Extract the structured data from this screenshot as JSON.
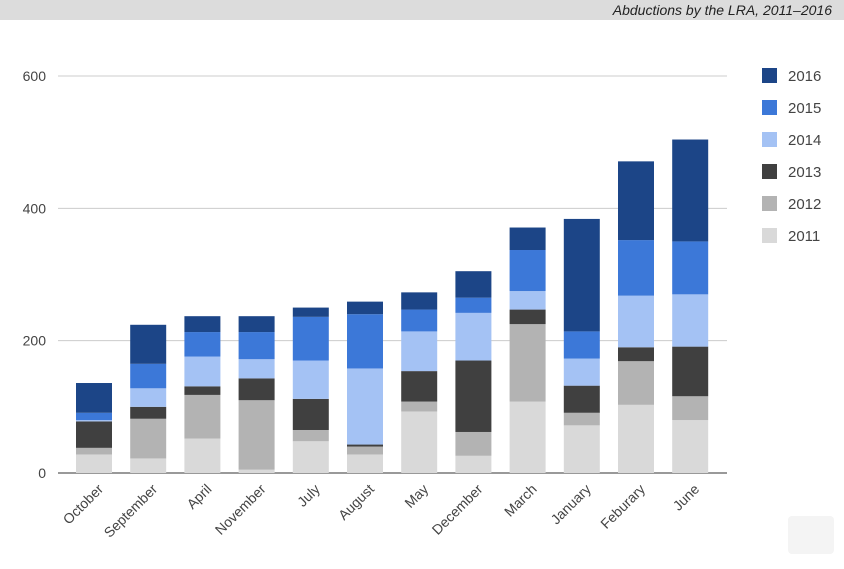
{
  "header": {
    "title": "Abductions by the LRA, 2011–2016"
  },
  "chart_data": {
    "type": "bar",
    "stacked": true,
    "title": "Abductions by the LRA, 2011–2016",
    "xlabel": "",
    "ylabel": "",
    "ylim": [
      0,
      600
    ],
    "yticks": [
      0,
      200,
      400,
      600
    ],
    "grid": true,
    "legend_position": "right",
    "categories": [
      "October",
      "September",
      "April",
      "November",
      "July",
      "August",
      "May",
      "December",
      "March",
      "January",
      "Feburary",
      "June"
    ],
    "series": [
      {
        "name": "2011",
        "color": "#d9d9d9",
        "values": [
          28,
          22,
          52,
          5,
          48,
          28,
          93,
          26,
          108,
          72,
          103,
          80
        ]
      },
      {
        "name": "2012",
        "color": "#b3b3b3",
        "values": [
          10,
          60,
          66,
          105,
          17,
          12,
          15,
          36,
          117,
          19,
          66,
          36
        ]
      },
      {
        "name": "2013",
        "color": "#404040",
        "values": [
          40,
          18,
          13,
          33,
          47,
          3,
          46,
          108,
          22,
          41,
          21,
          75
        ]
      },
      {
        "name": "2014",
        "color": "#a4c2f4",
        "values": [
          2,
          28,
          45,
          29,
          58,
          115,
          60,
          72,
          28,
          41,
          78,
          79
        ]
      },
      {
        "name": "2015",
        "color": "#3c78d8",
        "values": [
          11,
          37,
          37,
          41,
          66,
          82,
          33,
          23,
          62,
          41,
          84,
          80
        ]
      },
      {
        "name": "2016",
        "color": "#1c4587",
        "values": [
          45,
          59,
          24,
          24,
          14,
          19,
          26,
          40,
          34,
          170,
          119,
          154
        ]
      }
    ]
  }
}
